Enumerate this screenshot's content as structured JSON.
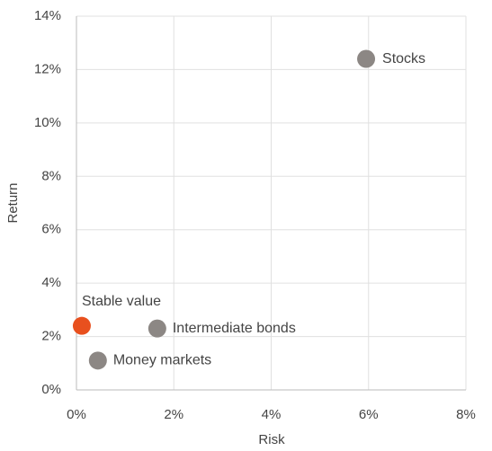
{
  "chart_data": {
    "type": "scatter",
    "xlabel": "Risk",
    "ylabel": "Return",
    "xlim": [
      0,
      8
    ],
    "ylim": [
      0,
      14
    ],
    "xticks": [
      {
        "value": 0,
        "label": "0%"
      },
      {
        "value": 2,
        "label": "2%"
      },
      {
        "value": 4,
        "label": "4%"
      },
      {
        "value": 6,
        "label": "6%"
      },
      {
        "value": 8,
        "label": "8%"
      }
    ],
    "yticks": [
      {
        "value": 0,
        "label": "0%"
      },
      {
        "value": 2,
        "label": "2%"
      },
      {
        "value": 4,
        "label": "4%"
      },
      {
        "value": 6,
        "label": "6%"
      },
      {
        "value": 8,
        "label": "8%"
      },
      {
        "value": 10,
        "label": "10%"
      },
      {
        "value": 12,
        "label": "12%"
      },
      {
        "value": 14,
        "label": "14%"
      }
    ],
    "grid": true,
    "series": [
      {
        "name": "Stocks",
        "color": "#8c8784",
        "x": [
          5.95
        ],
        "values": [
          12.4
        ]
      },
      {
        "name": "Stable value",
        "color": "#e8501e",
        "x": [
          0.11
        ],
        "values": [
          2.4
        ]
      },
      {
        "name": "Intermediate bonds",
        "color": "#8c8784",
        "x": [
          1.66
        ],
        "values": [
          2.3
        ]
      },
      {
        "name": "Money markets",
        "color": "#8c8784",
        "x": [
          0.44
        ],
        "values": [
          1.1
        ]
      }
    ]
  }
}
